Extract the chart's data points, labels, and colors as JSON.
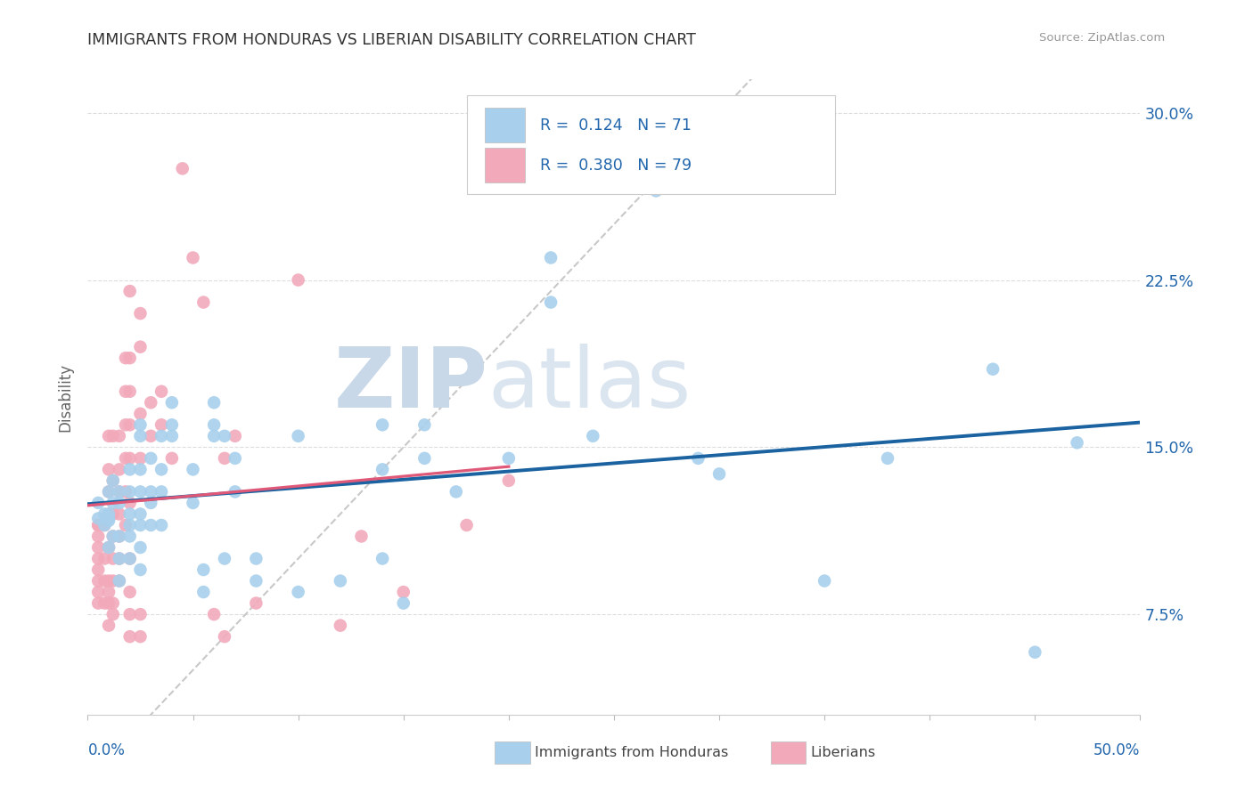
{
  "title": "IMMIGRANTS FROM HONDURAS VS LIBERIAN DISABILITY CORRELATION CHART",
  "source": "Source: ZipAtlas.com",
  "ylabel": "Disability",
  "ytick_vals": [
    0.075,
    0.15,
    0.225,
    0.3
  ],
  "ytick_labels": [
    "7.5%",
    "15.0%",
    "22.5%",
    "30.0%"
  ],
  "xmin": 0.0,
  "xmax": 0.5,
  "ymin": 0.03,
  "ymax": 0.315,
  "color_honduras": "#A8D0EC",
  "color_liberian": "#F2AABB",
  "color_trendline_honduras": "#1A62A0",
  "color_trendline_liberian": "#E05878",
  "color_diagonal": "#C8C8C8",
  "watermark_zip": "ZIP",
  "watermark_atlas": "atlas",
  "font_color_blue": "#2166AC",
  "font_color_title": "#333333",
  "background_color": "#FFFFFF",
  "grid_color": "#DDDDDD",
  "honduras_scatter": [
    [
      0.005,
      0.118
    ],
    [
      0.005,
      0.125
    ],
    [
      0.008,
      0.12
    ],
    [
      0.008,
      0.115
    ],
    [
      0.01,
      0.117
    ],
    [
      0.01,
      0.105
    ],
    [
      0.01,
      0.118
    ],
    [
      0.01,
      0.13
    ],
    [
      0.01,
      0.12
    ],
    [
      0.012,
      0.125
    ],
    [
      0.012,
      0.11
    ],
    [
      0.012,
      0.135
    ],
    [
      0.015,
      0.125
    ],
    [
      0.015,
      0.11
    ],
    [
      0.015,
      0.09
    ],
    [
      0.015,
      0.1
    ],
    [
      0.015,
      0.13
    ],
    [
      0.02,
      0.11
    ],
    [
      0.02,
      0.115
    ],
    [
      0.02,
      0.13
    ],
    [
      0.02,
      0.14
    ],
    [
      0.02,
      0.12
    ],
    [
      0.02,
      0.1
    ],
    [
      0.025,
      0.115
    ],
    [
      0.025,
      0.13
    ],
    [
      0.025,
      0.14
    ],
    [
      0.025,
      0.155
    ],
    [
      0.025,
      0.16
    ],
    [
      0.025,
      0.12
    ],
    [
      0.025,
      0.105
    ],
    [
      0.025,
      0.095
    ],
    [
      0.03,
      0.115
    ],
    [
      0.03,
      0.125
    ],
    [
      0.03,
      0.13
    ],
    [
      0.03,
      0.145
    ],
    [
      0.035,
      0.115
    ],
    [
      0.035,
      0.13
    ],
    [
      0.035,
      0.14
    ],
    [
      0.035,
      0.155
    ],
    [
      0.04,
      0.16
    ],
    [
      0.04,
      0.17
    ],
    [
      0.04,
      0.155
    ],
    [
      0.05,
      0.125
    ],
    [
      0.05,
      0.14
    ],
    [
      0.055,
      0.085
    ],
    [
      0.055,
      0.095
    ],
    [
      0.06,
      0.155
    ],
    [
      0.06,
      0.16
    ],
    [
      0.06,
      0.17
    ],
    [
      0.065,
      0.1
    ],
    [
      0.065,
      0.155
    ],
    [
      0.07,
      0.13
    ],
    [
      0.07,
      0.145
    ],
    [
      0.08,
      0.09
    ],
    [
      0.08,
      0.1
    ],
    [
      0.1,
      0.155
    ],
    [
      0.1,
      0.085
    ],
    [
      0.12,
      0.09
    ],
    [
      0.14,
      0.16
    ],
    [
      0.14,
      0.14
    ],
    [
      0.14,
      0.1
    ],
    [
      0.15,
      0.08
    ],
    [
      0.16,
      0.145
    ],
    [
      0.16,
      0.16
    ],
    [
      0.175,
      0.13
    ],
    [
      0.2,
      0.145
    ],
    [
      0.22,
      0.235
    ],
    [
      0.22,
      0.215
    ],
    [
      0.24,
      0.155
    ],
    [
      0.27,
      0.265
    ],
    [
      0.29,
      0.145
    ],
    [
      0.3,
      0.138
    ],
    [
      0.35,
      0.09
    ],
    [
      0.38,
      0.145
    ],
    [
      0.43,
      0.185
    ],
    [
      0.45,
      0.058
    ],
    [
      0.47,
      0.152
    ]
  ],
  "liberian_scatter": [
    [
      0.005,
      0.115
    ],
    [
      0.005,
      0.105
    ],
    [
      0.005,
      0.095
    ],
    [
      0.005,
      0.09
    ],
    [
      0.005,
      0.1
    ],
    [
      0.005,
      0.11
    ],
    [
      0.005,
      0.115
    ],
    [
      0.005,
      0.08
    ],
    [
      0.005,
      0.085
    ],
    [
      0.008,
      0.115
    ],
    [
      0.008,
      0.1
    ],
    [
      0.008,
      0.09
    ],
    [
      0.008,
      0.08
    ],
    [
      0.01,
      0.155
    ],
    [
      0.01,
      0.14
    ],
    [
      0.01,
      0.13
    ],
    [
      0.01,
      0.12
    ],
    [
      0.01,
      0.105
    ],
    [
      0.01,
      0.09
    ],
    [
      0.01,
      0.085
    ],
    [
      0.01,
      0.08
    ],
    [
      0.01,
      0.07
    ],
    [
      0.012,
      0.155
    ],
    [
      0.012,
      0.135
    ],
    [
      0.012,
      0.12
    ],
    [
      0.012,
      0.11
    ],
    [
      0.012,
      0.1
    ],
    [
      0.012,
      0.09
    ],
    [
      0.012,
      0.08
    ],
    [
      0.012,
      0.075
    ],
    [
      0.015,
      0.155
    ],
    [
      0.015,
      0.14
    ],
    [
      0.015,
      0.13
    ],
    [
      0.015,
      0.12
    ],
    [
      0.015,
      0.11
    ],
    [
      0.015,
      0.1
    ],
    [
      0.015,
      0.09
    ],
    [
      0.018,
      0.19
    ],
    [
      0.018,
      0.175
    ],
    [
      0.018,
      0.16
    ],
    [
      0.018,
      0.145
    ],
    [
      0.018,
      0.13
    ],
    [
      0.018,
      0.115
    ],
    [
      0.02,
      0.22
    ],
    [
      0.02,
      0.19
    ],
    [
      0.02,
      0.175
    ],
    [
      0.02,
      0.16
    ],
    [
      0.02,
      0.145
    ],
    [
      0.02,
      0.125
    ],
    [
      0.02,
      0.1
    ],
    [
      0.02,
      0.085
    ],
    [
      0.02,
      0.075
    ],
    [
      0.02,
      0.065
    ],
    [
      0.025,
      0.21
    ],
    [
      0.025,
      0.195
    ],
    [
      0.025,
      0.165
    ],
    [
      0.025,
      0.145
    ],
    [
      0.025,
      0.075
    ],
    [
      0.025,
      0.065
    ],
    [
      0.03,
      0.17
    ],
    [
      0.03,
      0.155
    ],
    [
      0.035,
      0.175
    ],
    [
      0.035,
      0.16
    ],
    [
      0.04,
      0.145
    ],
    [
      0.045,
      0.275
    ],
    [
      0.05,
      0.235
    ],
    [
      0.055,
      0.215
    ],
    [
      0.06,
      0.075
    ],
    [
      0.065,
      0.145
    ],
    [
      0.065,
      0.065
    ],
    [
      0.07,
      0.155
    ],
    [
      0.08,
      0.08
    ],
    [
      0.1,
      0.225
    ],
    [
      0.12,
      0.07
    ],
    [
      0.13,
      0.11
    ],
    [
      0.15,
      0.085
    ],
    [
      0.18,
      0.115
    ],
    [
      0.2,
      0.135
    ]
  ]
}
